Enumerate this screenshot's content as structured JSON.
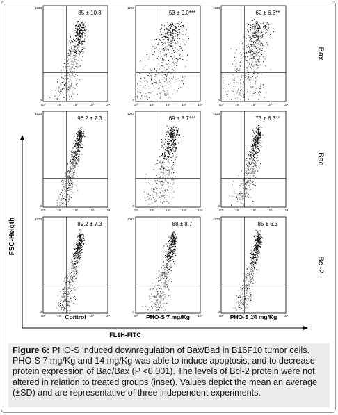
{
  "rows": [
    {
      "label": "Bax",
      "values": [
        "85 ± 10.3",
        "53 ± 9.0***",
        "62 ± 6.3**"
      ]
    },
    {
      "label": "Bad",
      "values": [
        "96.2 ± 7.3",
        "69 ± 8.7***",
        "73 ± 6.3**"
      ]
    },
    {
      "label": "Bcl-2",
      "values": [
        "89.2 ± 7.3",
        "88 ± 8.7",
        "85 ± 6.3"
      ]
    }
  ],
  "columns": [
    "Control",
    "PHO-S 7 mg/Kg",
    "PHO-S 14 mg/Kg"
  ],
  "y_axis_label": "FSC-Heigth",
  "x_axis_label": "FL1H-FITC",
  "ticks": {
    "y_top": "1023",
    "y_bottom": "0",
    "x": [
      "10⁰",
      "10¹",
      "10²",
      "10³",
      "10⁴"
    ]
  },
  "caption": {
    "label": "Figure 6:",
    "text": "PHO-S induced downregulation of Bax/Bad in B16F10 tumor cells. PHO-S 7 mg/Kg and 14 mg/Kg was able to induce apoptosis, and to decrease protein expression of Bad/Bax (P <0.001). The levels of Bcl-2 protein were not altered in relation to treated groups (inset). Values depict the mean an average (±SD) and are representative of three independent experiments."
  }
}
